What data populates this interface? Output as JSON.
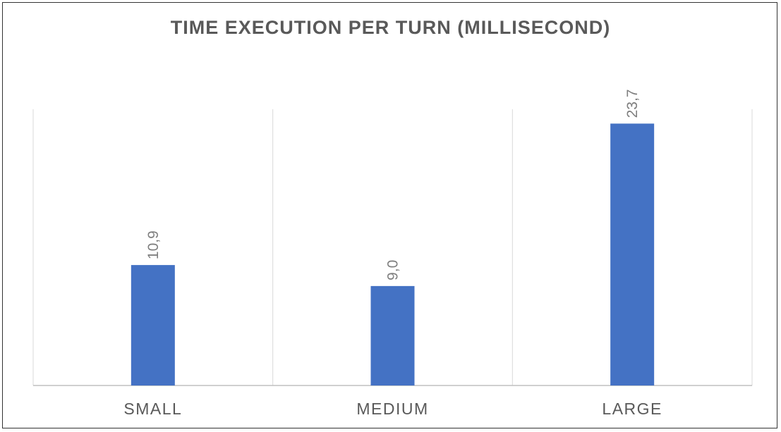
{
  "chart_data": {
    "type": "bar",
    "title": "TIME EXECUTION PER TURN (MILLISECOND)",
    "categories": [
      "SMALL",
      "MEDIUM",
      "LARGE"
    ],
    "values": [
      10.9,
      9.0,
      23.7
    ],
    "value_labels": [
      "10,9",
      "9,0",
      "23,7"
    ],
    "xlabel": "",
    "ylabel": "",
    "ylim": [
      0,
      25
    ],
    "grid": "vertical category separators",
    "legend": "none",
    "bar_color": "#4472C4"
  }
}
